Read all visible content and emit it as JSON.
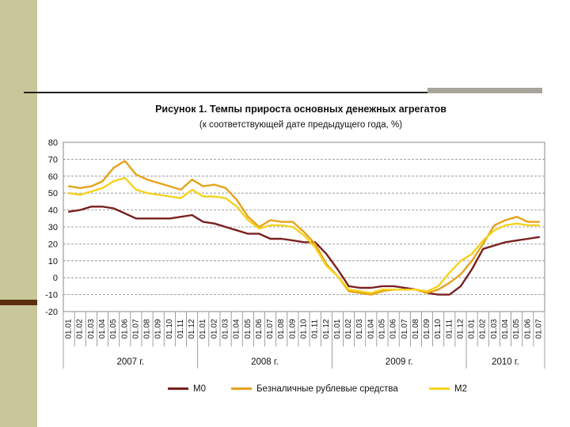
{
  "chart_data": {
    "type": "line",
    "title": "Рисунок 1. Темпы прироста основных денежных агрегатов",
    "subtitle": "(к соответствующей дате предыдущего года, %)",
    "ylim": [
      -20,
      80
    ],
    "yticks": [
      "80",
      "70",
      "60",
      "50",
      "40",
      "30",
      "20",
      "10",
      "0",
      "-10",
      "-20"
    ],
    "grid": true,
    "legend_position": "bottom",
    "x": [
      "01.01",
      "01.02",
      "01.03",
      "01.04",
      "01.05",
      "01.06",
      "01.07",
      "01.08",
      "01.09",
      "01.10",
      "01.11",
      "01.12",
      "01.01",
      "01.02",
      "01.03",
      "01.04",
      "01.05",
      "01.06",
      "01.07",
      "01.08",
      "01.09",
      "01.10",
      "01.11",
      "01.12",
      "01.01",
      "01.02",
      "01.03",
      "01.04",
      "01.05",
      "01.06",
      "01.07",
      "01.08",
      "01.09",
      "01.10",
      "01.11",
      "01.12",
      "01.01",
      "01.02",
      "01.03",
      "01.04",
      "01.05",
      "01.06",
      "01.07"
    ],
    "groups": [
      {
        "label": "2007 г.",
        "count": 12
      },
      {
        "label": "2008 г.",
        "count": 12
      },
      {
        "label": "2009 г.",
        "count": 12
      },
      {
        "label": "2010 г.",
        "count": 7
      }
    ],
    "series": [
      {
        "name": "M0",
        "color": "#7a1f1f",
        "values": [
          39,
          40,
          42,
          42,
          41,
          38,
          35,
          35,
          35,
          35,
          36,
          37,
          33,
          32,
          30,
          28,
          26,
          26,
          23,
          23,
          22,
          21,
          21,
          14,
          5,
          -5,
          -6,
          -6,
          -5,
          -5,
          -6,
          -7,
          -9,
          -10,
          -10,
          -5,
          5,
          17,
          19,
          21,
          22,
          23,
          24
        ]
      },
      {
        "name": "Безналичные рублевые средства",
        "color": "#e6a218",
        "values": [
          54,
          53,
          54,
          57,
          65,
          69,
          61,
          58,
          56,
          54,
          52,
          58,
          54,
          55,
          53,
          46,
          36,
          30,
          34,
          33,
          33,
          27,
          20,
          8,
          1,
          -8,
          -9,
          -10,
          -8,
          -7,
          -7,
          -7,
          -9,
          -7,
          -3,
          2,
          10,
          20,
          31,
          34,
          36,
          33,
          33
        ]
      },
      {
        "name": "M2",
        "color": "#f5d21e",
        "values": [
          50,
          49,
          51,
          53,
          57,
          59,
          52,
          50,
          49,
          48,
          47,
          52,
          48,
          48,
          47,
          42,
          34,
          29,
          31,
          31,
          30,
          25,
          18,
          7,
          1,
          -7,
          -8,
          -9,
          -7,
          -7,
          -7,
          -7,
          -8,
          -5,
          3,
          10,
          14,
          22,
          28,
          31,
          32,
          31,
          31
        ]
      }
    ]
  }
}
